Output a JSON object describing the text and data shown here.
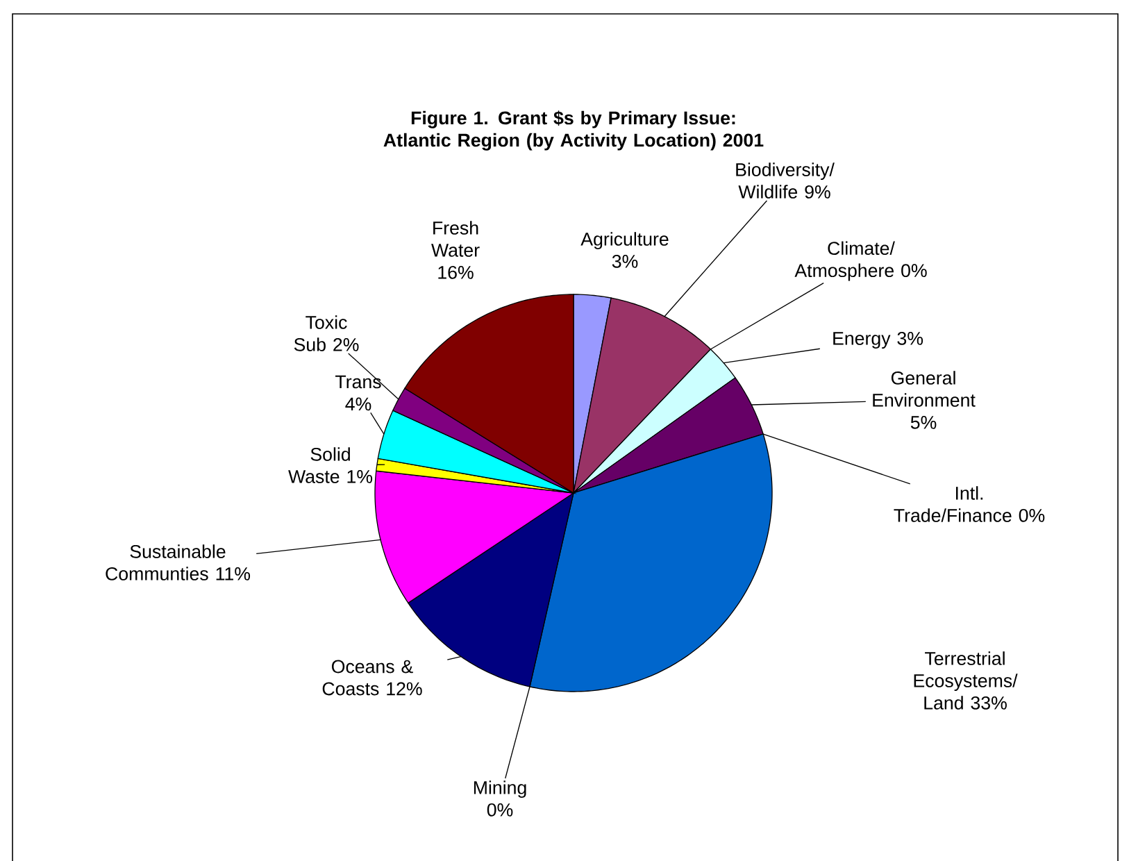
{
  "chart_data": {
    "type": "pie",
    "title": "Figure 1. Grant $s by Primary Issue: Atlantic Region (by Activity Location) 2001",
    "categories": [
      "Agriculture",
      "Biodiversity/ Wildlife",
      "Climate/ Atmosphere",
      "Energy",
      "General Environment",
      "Intl. Trade/Finance",
      "Terrestrial Ecosystems/ Land",
      "Mining",
      "Oceans & Coasts",
      "Sustainable Communties",
      "Solid Waste",
      "Trans",
      "Toxic Sub",
      "Fresh Water"
    ],
    "values": [
      3,
      9,
      0,
      3,
      5,
      0,
      33,
      0,
      12,
      11,
      1,
      4,
      2,
      16
    ],
    "value_labels": [
      "3%",
      "9%",
      "0%",
      "3%",
      "5%",
      "0%",
      "33%",
      "0%",
      "12%",
      "11%",
      "1%",
      "4%",
      "2%",
      "16%"
    ],
    "colors": [
      "#9999ff",
      "#993366",
      "#ffffcc",
      "#ccffff",
      "#660066",
      "#ff8080",
      "#0066cc",
      "#ccccff",
      "#000080",
      "#ff00ff",
      "#ffff00",
      "#00ffff",
      "#800080",
      "#800000"
    ],
    "legend": false
  }
}
